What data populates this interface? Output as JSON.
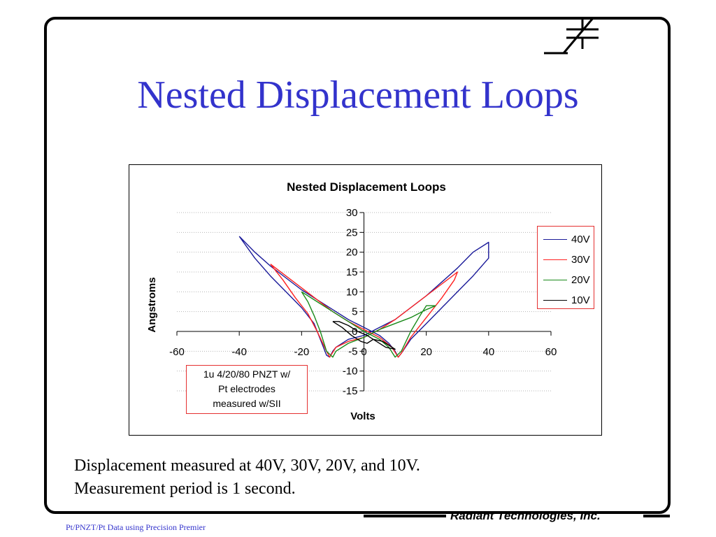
{
  "slide": {
    "title": "Nested Displacement Loops",
    "caption_lines": [
      "Displacement measured at 40V, 30V, 20V, and 10V.",
      "Measurement period is 1 second."
    ],
    "footer_company": "Radiant Technologies, Inc.",
    "footer_note": "Pt/PNZT/Pt  Data using Precision Premier",
    "title_color": "#3333cc",
    "frame_color": "#000000"
  },
  "chart_data": {
    "type": "line",
    "title": "Nested Displacement Loops",
    "xlabel": "Volts",
    "ylabel": "Angstroms",
    "xlim": [
      -60,
      60
    ],
    "ylim": [
      -15,
      30
    ],
    "xticks": [
      -60,
      -40,
      -20,
      0,
      20,
      40,
      60
    ],
    "yticks": [
      -15,
      -10,
      -5,
      0,
      5,
      10,
      15,
      20,
      25,
      30
    ],
    "grid": "horizontal",
    "legend_placement": "right",
    "annotation": [
      "1u 4/20/80 PNZT w/",
      "Pt electrodes",
      "measured w/SII"
    ],
    "series": [
      {
        "name": "40V",
        "color": "#1a1a99",
        "points": [
          [
            -40,
            24
          ],
          [
            -35,
            20
          ],
          [
            -30,
            16.5
          ],
          [
            -25,
            13.5
          ],
          [
            -20,
            10.5
          ],
          [
            -15,
            8
          ],
          [
            -10,
            5.5
          ],
          [
            -5,
            3
          ],
          [
            0,
            1
          ],
          [
            5,
            -1
          ],
          [
            8,
            -3
          ],
          [
            10,
            -5
          ],
          [
            11,
            -6.5
          ],
          [
            12,
            -5.5
          ],
          [
            15,
            -2
          ],
          [
            20,
            2
          ],
          [
            25,
            6
          ],
          [
            30,
            10
          ],
          [
            35,
            14
          ],
          [
            40,
            18.5
          ],
          [
            40,
            22.5
          ],
          [
            35,
            20
          ],
          [
            30,
            16
          ],
          [
            25,
            12.5
          ],
          [
            20,
            9
          ],
          [
            15,
            6
          ],
          [
            10,
            3
          ],
          [
            5,
            1
          ],
          [
            0,
            -1
          ],
          [
            -5,
            -2
          ],
          [
            -9,
            -4
          ],
          [
            -10,
            -5
          ],
          [
            -11,
            -6.5
          ],
          [
            -12,
            -6
          ],
          [
            -14,
            -2
          ],
          [
            -16,
            2
          ],
          [
            -20,
            6
          ],
          [
            -25,
            10
          ],
          [
            -30,
            14
          ],
          [
            -35,
            18.5
          ],
          [
            -40,
            24
          ]
        ]
      },
      {
        "name": "30V",
        "color": "#ff2020",
        "points": [
          [
            -30,
            17
          ],
          [
            -25,
            14
          ],
          [
            -20,
            11
          ],
          [
            -15,
            8
          ],
          [
            -10,
            5
          ],
          [
            -5,
            2.5
          ],
          [
            0,
            0.5
          ],
          [
            5,
            -1.5
          ],
          [
            9,
            -4
          ],
          [
            11,
            -6.5
          ],
          [
            12,
            -5.5
          ],
          [
            15,
            -1.5
          ],
          [
            20,
            3.5
          ],
          [
            25,
            8.5
          ],
          [
            29,
            13
          ],
          [
            30,
            15
          ],
          [
            25,
            12
          ],
          [
            20,
            9
          ],
          [
            15,
            6
          ],
          [
            10,
            3
          ],
          [
            5,
            0.5
          ],
          [
            0,
            -1.5
          ],
          [
            -5,
            -2.5
          ],
          [
            -9,
            -4
          ],
          [
            -11,
            -6.5
          ],
          [
            -12,
            -5
          ],
          [
            -15,
            0
          ],
          [
            -18,
            4.5
          ],
          [
            -22,
            8.5
          ],
          [
            -26,
            13
          ],
          [
            -30,
            17
          ]
        ]
      },
      {
        "name": "20V",
        "color": "#1a8a1a",
        "points": [
          [
            -20,
            10
          ],
          [
            -15,
            7.5
          ],
          [
            -10,
            5
          ],
          [
            -5,
            2.5
          ],
          [
            0,
            0
          ],
          [
            5,
            -2
          ],
          [
            8,
            -4
          ],
          [
            10,
            -6.5
          ],
          [
            12,
            -5
          ],
          [
            15,
            0
          ],
          [
            18,
            4
          ],
          [
            20,
            6.5
          ],
          [
            23,
            6.5
          ],
          [
            20,
            5.5
          ],
          [
            15,
            3.5
          ],
          [
            10,
            2
          ],
          [
            5,
            0.5
          ],
          [
            0,
            -1.5
          ],
          [
            -5,
            -3
          ],
          [
            -9,
            -5
          ],
          [
            -10,
            -6.5
          ],
          [
            -12,
            -5
          ],
          [
            -14,
            0
          ],
          [
            -16,
            4
          ],
          [
            -18,
            7.5
          ],
          [
            -20,
            10
          ]
        ]
      },
      {
        "name": "10V",
        "color": "#000000",
        "points": [
          [
            -10,
            2.5
          ],
          [
            -7,
            1
          ],
          [
            -4,
            -1
          ],
          [
            -1,
            -2.5
          ],
          [
            1,
            -3
          ],
          [
            3,
            -2
          ],
          [
            6,
            -2.5
          ],
          [
            10,
            -4.5
          ],
          [
            7,
            -4
          ],
          [
            4,
            -2.5
          ],
          [
            1,
            -1
          ],
          [
            -2,
            0
          ],
          [
            -5,
            1.5
          ],
          [
            -8,
            2.5
          ],
          [
            -10,
            2.5
          ]
        ]
      }
    ]
  }
}
